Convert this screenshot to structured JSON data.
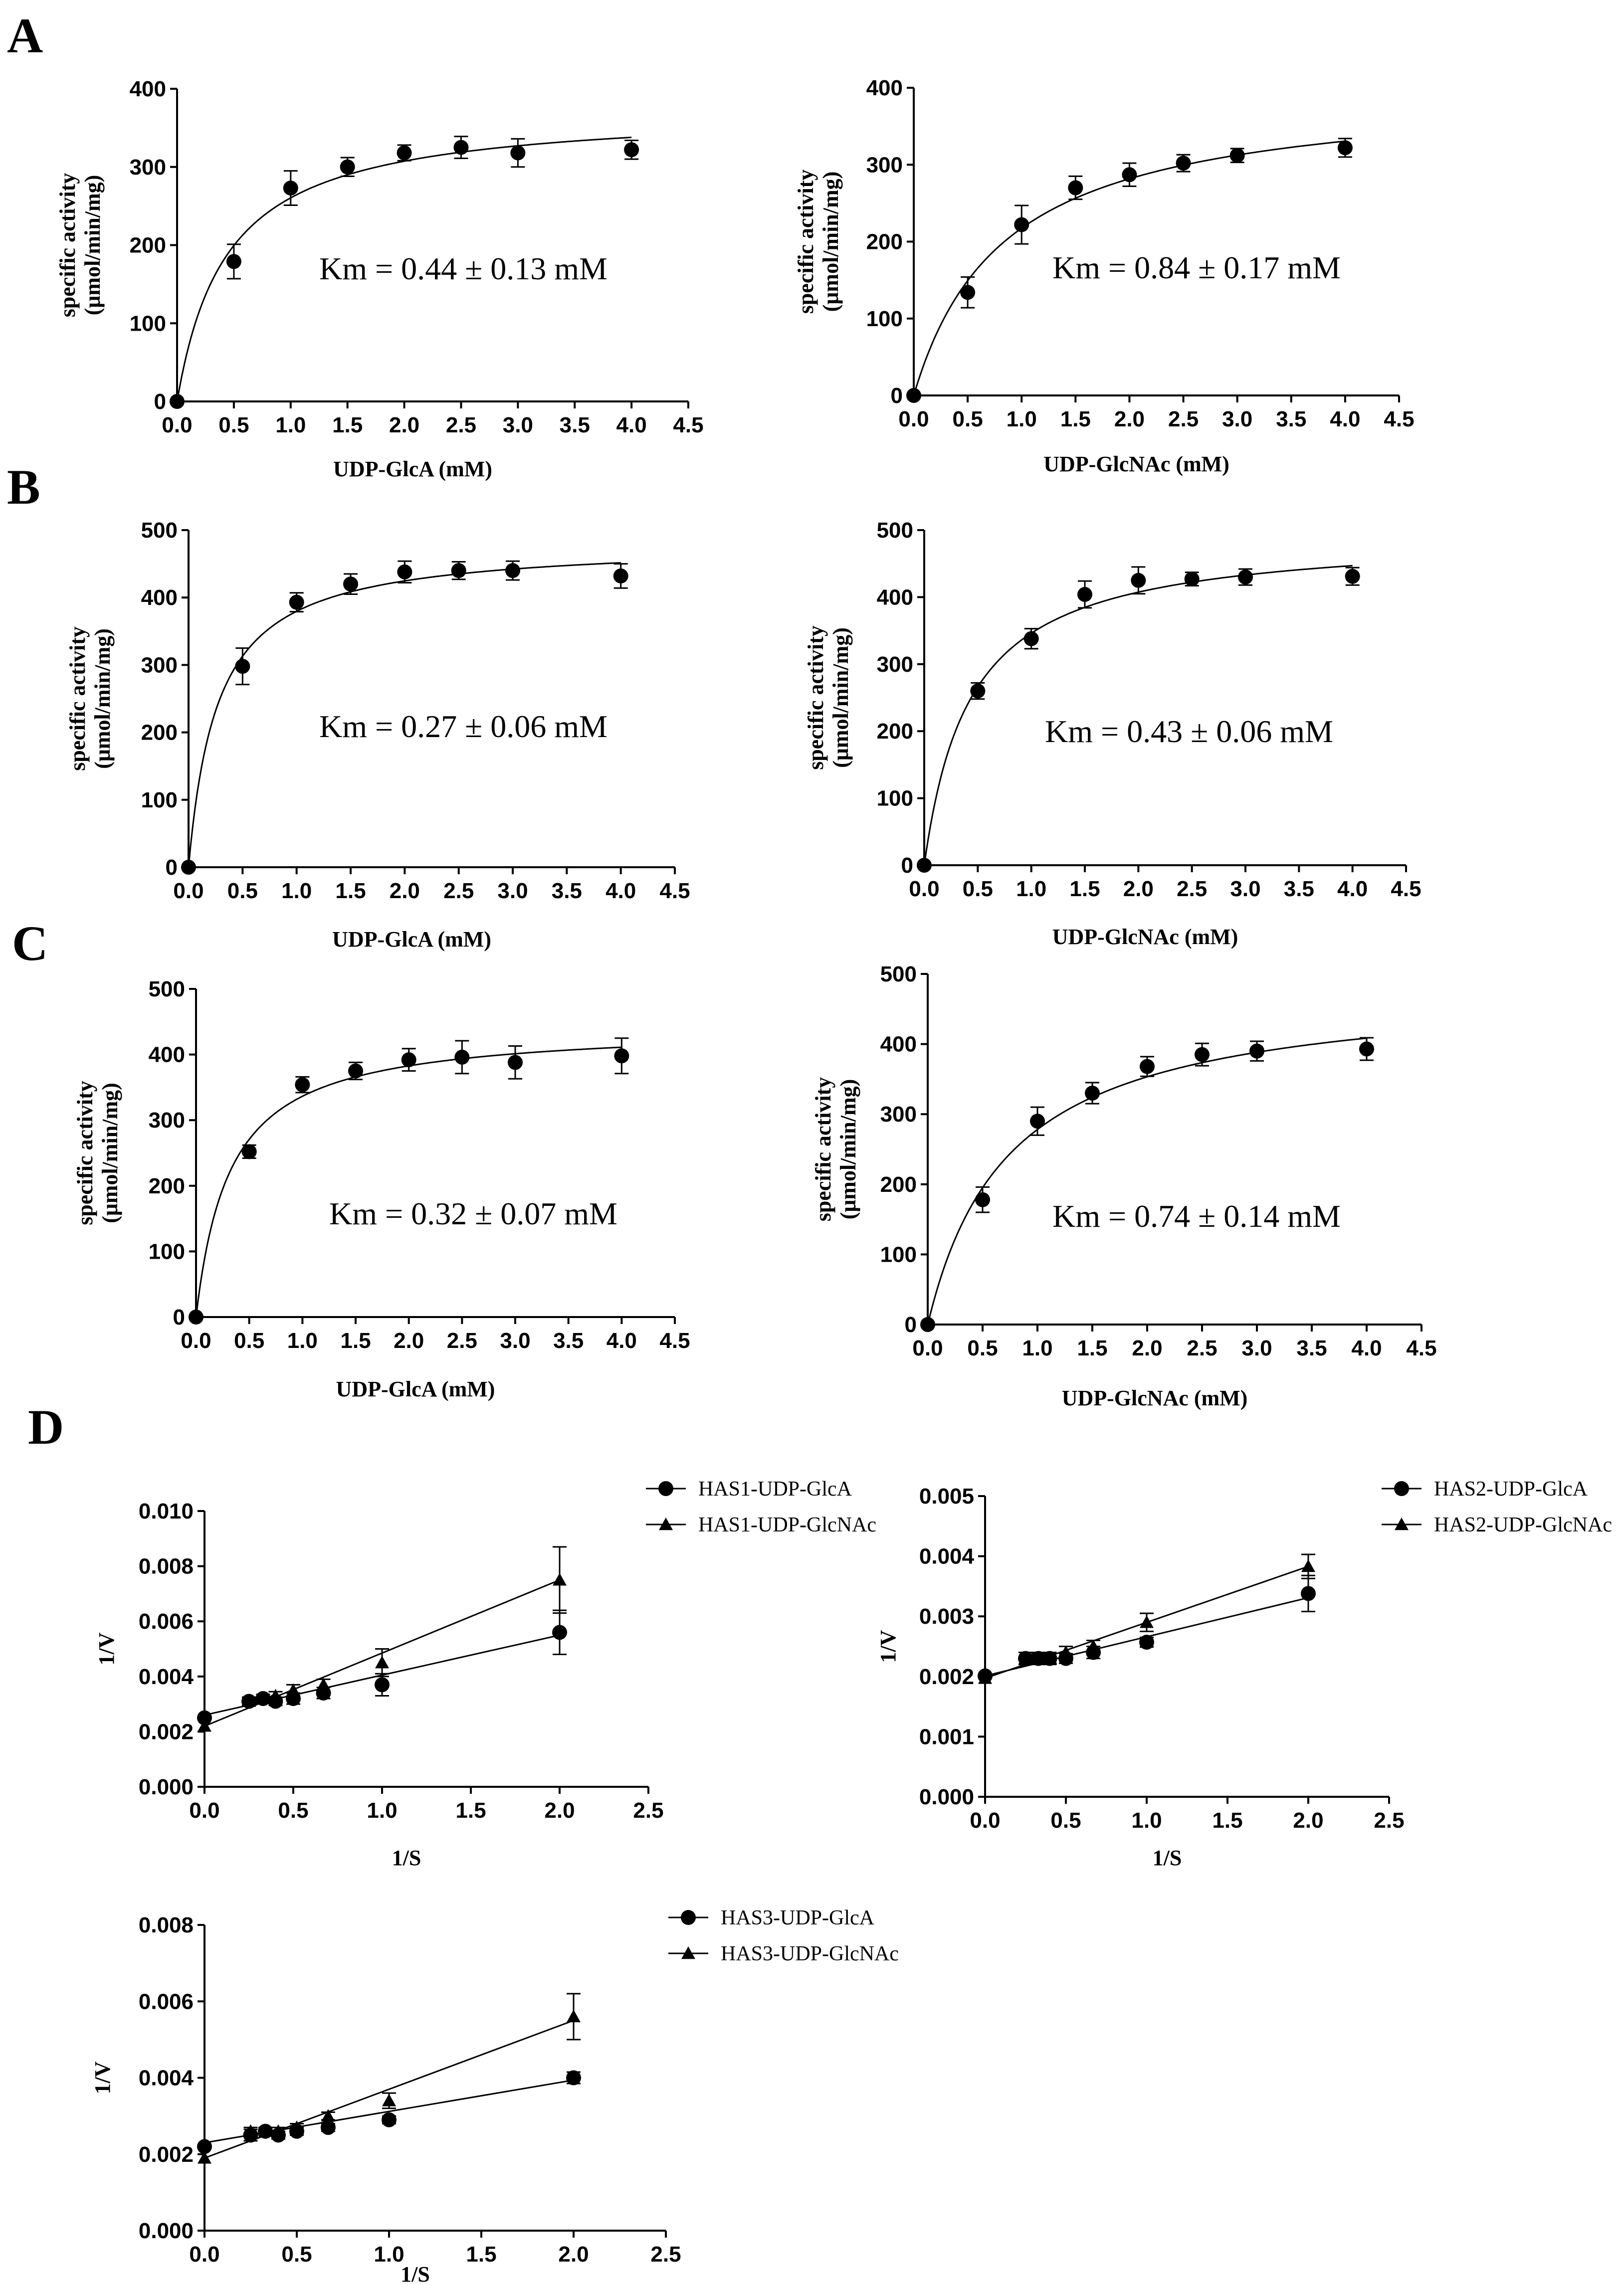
{
  "figure": {
    "panels": [
      {
        "letter": "A"
      },
      {
        "letter": "B"
      },
      {
        "letter": "C"
      },
      {
        "letter": "D"
      }
    ]
  },
  "chart_data": [
    {
      "id": "A-left",
      "panel": "A",
      "type": "scatter",
      "fit": "michaelis-menten",
      "xlabel": "UDP-GlcA (mM)",
      "ylabel": [
        "specific activity",
        "(μmol/min/mg)"
      ],
      "annotation": "Km = 0.44 ± 0.13 mM",
      "xlim": [
        0,
        4.5
      ],
      "ylim": [
        0,
        400
      ],
      "xticks": [
        "0.0",
        "0.5",
        "1.0",
        "1.5",
        "2.0",
        "2.5",
        "3.0",
        "3.5",
        "4.0",
        "4.5"
      ],
      "yticks": [
        "0",
        "100",
        "200",
        "300",
        "400"
      ],
      "fit_params": {
        "vmax": 375,
        "km": 0.44
      },
      "points": [
        {
          "x": 0,
          "y": 0,
          "err": 0
        },
        {
          "x": 0.5,
          "y": 179,
          "err": 22
        },
        {
          "x": 1.0,
          "y": 273,
          "err": 22
        },
        {
          "x": 1.5,
          "y": 300,
          "err": 12
        },
        {
          "x": 2.0,
          "y": 318,
          "err": 10
        },
        {
          "x": 2.5,
          "y": 325,
          "err": 14
        },
        {
          "x": 3.0,
          "y": 318,
          "err": 18
        },
        {
          "x": 4.0,
          "y": 322,
          "err": 12
        }
      ]
    },
    {
      "id": "A-right",
      "panel": "A",
      "type": "scatter",
      "fit": "michaelis-menten",
      "xlabel": "UDP-GlcNAc (mM)",
      "ylabel": [
        "specific activity",
        "(μmol/min/mg)"
      ],
      "annotation": "Km = 0.84 ± 0.17 mM",
      "xlim": [
        0,
        4.5
      ],
      "ylim": [
        0,
        400
      ],
      "xticks": [
        "0.0",
        "0.5",
        "1.0",
        "1.5",
        "2.0",
        "2.5",
        "3.0",
        "3.5",
        "4.0",
        "4.5"
      ],
      "yticks": [
        "0",
        "100",
        "200",
        "300",
        "400"
      ],
      "fit_params": {
        "vmax": 400,
        "km": 0.84
      },
      "points": [
        {
          "x": 0,
          "y": 0,
          "err": 0
        },
        {
          "x": 0.5,
          "y": 134,
          "err": 20
        },
        {
          "x": 1.0,
          "y": 222,
          "err": 25
        },
        {
          "x": 1.5,
          "y": 270,
          "err": 15
        },
        {
          "x": 2.0,
          "y": 287,
          "err": 15
        },
        {
          "x": 2.5,
          "y": 302,
          "err": 11
        },
        {
          "x": 3.0,
          "y": 312,
          "err": 9
        },
        {
          "x": 4.0,
          "y": 322,
          "err": 12
        }
      ]
    },
    {
      "id": "B-left",
      "panel": "B",
      "type": "scatter",
      "fit": "michaelis-menten",
      "xlabel": "UDP-GlcA (mM)",
      "ylabel": [
        "specific activity",
        "(μmol/min/mg)"
      ],
      "annotation": "Km = 0.27 ± 0.06 mM",
      "xlim": [
        0,
        4.5
      ],
      "ylim": [
        0,
        500
      ],
      "xticks": [
        "0.0",
        "0.5",
        "1.0",
        "1.5",
        "2.0",
        "2.5",
        "3.0",
        "3.5",
        "4.0",
        "4.5"
      ],
      "yticks": [
        "0",
        "100",
        "200",
        "300",
        "400",
        "500"
      ],
      "fit_params": {
        "vmax": 482,
        "km": 0.27
      },
      "points": [
        {
          "x": 0,
          "y": 0,
          "err": 0
        },
        {
          "x": 0.5,
          "y": 298,
          "err": 27
        },
        {
          "x": 1.0,
          "y": 393,
          "err": 14
        },
        {
          "x": 1.5,
          "y": 420,
          "err": 15
        },
        {
          "x": 2.0,
          "y": 438,
          "err": 16
        },
        {
          "x": 2.5,
          "y": 440,
          "err": 13
        },
        {
          "x": 3.0,
          "y": 440,
          "err": 14
        },
        {
          "x": 4.0,
          "y": 432,
          "err": 18
        }
      ]
    },
    {
      "id": "B-right",
      "panel": "B",
      "type": "scatter",
      "fit": "michaelis-menten",
      "xlabel": "UDP-GlcNAc (mM)",
      "ylabel": [
        "specific activity",
        "(μmol/min/mg)"
      ],
      "annotation": "Km = 0.43 ± 0.06 mM",
      "xlim": [
        0,
        4.5
      ],
      "ylim": [
        0,
        500
      ],
      "xticks": [
        "0.0",
        "0.5",
        "1.0",
        "1.5",
        "2.0",
        "2.5",
        "3.0",
        "3.5",
        "4.0",
        "4.5"
      ],
      "yticks": [
        "0",
        "100",
        "200",
        "300",
        "400",
        "500"
      ],
      "fit_params": {
        "vmax": 495,
        "km": 0.43
      },
      "points": [
        {
          "x": 0,
          "y": 0,
          "err": 0
        },
        {
          "x": 0.5,
          "y": 260,
          "err": 12
        },
        {
          "x": 1.0,
          "y": 338,
          "err": 15
        },
        {
          "x": 1.5,
          "y": 404,
          "err": 20
        },
        {
          "x": 2.0,
          "y": 425,
          "err": 20
        },
        {
          "x": 2.5,
          "y": 427,
          "err": 10
        },
        {
          "x": 3.0,
          "y": 430,
          "err": 12
        },
        {
          "x": 4.0,
          "y": 431,
          "err": 13
        }
      ]
    },
    {
      "id": "C-left",
      "panel": "C",
      "type": "scatter",
      "fit": "michaelis-menten",
      "xlabel": "UDP-GlcA (mM)",
      "ylabel": [
        "specific activity",
        "(μmol/min/mg)"
      ],
      "annotation": "Km = 0.32 ± 0.07 mM",
      "xlim": [
        0,
        4.5
      ],
      "ylim": [
        0,
        500
      ],
      "xticks": [
        "0.0",
        "0.5",
        "1.0",
        "1.5",
        "2.0",
        "2.5",
        "3.0",
        "3.5",
        "4.0",
        "4.5"
      ],
      "yticks": [
        "0",
        "100",
        "200",
        "300",
        "400",
        "500"
      ],
      "fit_params": {
        "vmax": 444,
        "km": 0.32
      },
      "points": [
        {
          "x": 0,
          "y": 0,
          "err": 0
        },
        {
          "x": 0.5,
          "y": 252,
          "err": 10
        },
        {
          "x": 1.0,
          "y": 354,
          "err": 12
        },
        {
          "x": 1.5,
          "y": 375,
          "err": 13
        },
        {
          "x": 2.0,
          "y": 392,
          "err": 17
        },
        {
          "x": 2.5,
          "y": 396,
          "err": 25
        },
        {
          "x": 3.0,
          "y": 388,
          "err": 25
        },
        {
          "x": 4.0,
          "y": 398,
          "err": 27
        }
      ]
    },
    {
      "id": "C-right",
      "panel": "C",
      "type": "scatter",
      "fit": "michaelis-menten",
      "xlabel": "UDP-GlcNAc (mM)",
      "ylabel": [
        "specific activity",
        "(μmol/min/mg)"
      ],
      "annotation": "Km = 0.74 ± 0.14 mM",
      "xlim": [
        0,
        4.5
      ],
      "ylim": [
        0,
        500
      ],
      "xticks": [
        "0.0",
        "0.5",
        "1.0",
        "1.5",
        "2.0",
        "2.5",
        "3.0",
        "3.5",
        "4.0",
        "4.5"
      ],
      "yticks": [
        "0",
        "100",
        "200",
        "300",
        "400",
        "500"
      ],
      "fit_params": {
        "vmax": 484,
        "km": 0.74
      },
      "points": [
        {
          "x": 0,
          "y": 0,
          "err": 0
        },
        {
          "x": 0.5,
          "y": 178,
          "err": 18
        },
        {
          "x": 1.0,
          "y": 290,
          "err": 20
        },
        {
          "x": 1.5,
          "y": 330,
          "err": 15
        },
        {
          "x": 2.0,
          "y": 368,
          "err": 14
        },
        {
          "x": 2.5,
          "y": 385,
          "err": 16
        },
        {
          "x": 3.0,
          "y": 390,
          "err": 14
        },
        {
          "x": 4.0,
          "y": 393,
          "err": 16
        }
      ]
    },
    {
      "id": "D-has1",
      "panel": "D",
      "type": "scatter",
      "fit": "linear",
      "xlabel": "1/S",
      "ylabel": [
        "1/V"
      ],
      "xlim": [
        0,
        2.5
      ],
      "ylim": [
        0,
        0.01
      ],
      "xticks": [
        "0.0",
        "0.5",
        "1.0",
        "1.5",
        "2.0",
        "2.5"
      ],
      "yticks": [
        "0.000",
        "0.002",
        "0.004",
        "0.006",
        "0.008",
        "0.010"
      ],
      "series": [
        {
          "name": "HAS1-UDP-GlcA",
          "marker": "circle",
          "line": {
            "intercept": 0.0026,
            "slope": 0.00145
          },
          "points": [
            {
              "x": 0,
              "y": 0.0025,
              "err": 0
            },
            {
              "x": 0.25,
              "y": 0.0031,
              "err": 0.00015
            },
            {
              "x": 0.33,
              "y": 0.0032,
              "err": 0.00015
            },
            {
              "x": 0.4,
              "y": 0.0031,
              "err": 0.00015
            },
            {
              "x": 0.5,
              "y": 0.0032,
              "err": 0.0002
            },
            {
              "x": 0.67,
              "y": 0.0034,
              "err": 0.0002
            },
            {
              "x": 1.0,
              "y": 0.0037,
              "err": 0.0004
            },
            {
              "x": 2.0,
              "y": 0.0056,
              "err": 0.0008
            }
          ]
        },
        {
          "name": "HAS1-UDP-GlcNAc",
          "marker": "triangle",
          "line": {
            "intercept": 0.0022,
            "slope": 0.00265
          },
          "points": [
            {
              "x": 0,
              "y": 0.0022,
              "err": 0
            },
            {
              "x": 0.25,
              "y": 0.0031,
              "err": 0.00015
            },
            {
              "x": 0.33,
              "y": 0.0032,
              "err": 0.00015
            },
            {
              "x": 0.4,
              "y": 0.0033,
              "err": 0.00015
            },
            {
              "x": 0.5,
              "y": 0.0035,
              "err": 0.0002
            },
            {
              "x": 0.67,
              "y": 0.0037,
              "err": 0.0002
            },
            {
              "x": 1.0,
              "y": 0.0045,
              "err": 0.0005
            },
            {
              "x": 2.0,
              "y": 0.0075,
              "err": 0.0012
            }
          ]
        }
      ]
    },
    {
      "id": "D-has2",
      "panel": "D",
      "type": "scatter",
      "fit": "linear",
      "xlabel": "1/S",
      "ylabel": [
        "1/V"
      ],
      "xlim": [
        0,
        2.5
      ],
      "ylim": [
        0,
        0.005
      ],
      "xticks": [
        "0.0",
        "0.5",
        "1.0",
        "1.5",
        "2.0",
        "2.5"
      ],
      "yticks": [
        "0.000",
        "0.001",
        "0.002",
        "0.003",
        "0.004",
        "0.005"
      ],
      "series": [
        {
          "name": "HAS2-UDP-GlcA",
          "marker": "circle",
          "line": {
            "intercept": 0.00201,
            "slope": 0.00065
          },
          "points": [
            {
              "x": 0,
              "y": 0.00201,
              "err": 0
            },
            {
              "x": 0.25,
              "y": 0.0023,
              "err": 0.0001
            },
            {
              "x": 0.33,
              "y": 0.0023,
              "err": 8e-05
            },
            {
              "x": 0.4,
              "y": 0.0023,
              "err": 8e-05
            },
            {
              "x": 0.5,
              "y": 0.0023,
              "err": 8e-05
            },
            {
              "x": 0.67,
              "y": 0.0024,
              "err": 0.0001
            },
            {
              "x": 1.0,
              "y": 0.00257,
              "err": 8e-05
            },
            {
              "x": 2.0,
              "y": 0.00338,
              "err": 0.0003
            }
          ]
        },
        {
          "name": "HAS2-UDP-GlcNAc",
          "marker": "triangle",
          "line": {
            "intercept": 0.00197,
            "slope": 0.00093
          },
          "points": [
            {
              "x": 0,
              "y": 0.00197,
              "err": 0
            },
            {
              "x": 0.25,
              "y": 0.0023,
              "err": 0.0001
            },
            {
              "x": 0.33,
              "y": 0.0023,
              "err": 0.0001
            },
            {
              "x": 0.4,
              "y": 0.0023,
              "err": 0.0001
            },
            {
              "x": 0.5,
              "y": 0.0024,
              "err": 0.0001
            },
            {
              "x": 0.67,
              "y": 0.0025,
              "err": 0.0001
            },
            {
              "x": 1.0,
              "y": 0.0029,
              "err": 0.00015
            },
            {
              "x": 2.0,
              "y": 0.00383,
              "err": 0.0002
            }
          ]
        }
      ]
    },
    {
      "id": "D-has3",
      "panel": "D",
      "type": "scatter",
      "fit": "linear",
      "xlabel": "1/S",
      "ylabel": [
        "1/V"
      ],
      "xlim": [
        0,
        2.5
      ],
      "ylim": [
        0,
        0.008
      ],
      "xticks": [
        "0.0",
        "0.5",
        "1.0",
        "1.5",
        "2.0",
        "2.5"
      ],
      "yticks": [
        "0.000",
        "0.002",
        "0.004",
        "0.006",
        "0.008"
      ],
      "series": [
        {
          "name": "HAS3-UDP-GlcA",
          "marker": "circle",
          "line": {
            "intercept": 0.0023,
            "slope": 0.00082
          },
          "points": [
            {
              "x": 0,
              "y": 0.0022,
              "err": 0
            },
            {
              "x": 0.25,
              "y": 0.0025,
              "err": 0.00015
            },
            {
              "x": 0.33,
              "y": 0.0026,
              "err": 0.0001
            },
            {
              "x": 0.4,
              "y": 0.0025,
              "err": 0.0001
            },
            {
              "x": 0.5,
              "y": 0.0026,
              "err": 0.0001
            },
            {
              "x": 0.67,
              "y": 0.0027,
              "err": 0.0001
            },
            {
              "x": 1.0,
              "y": 0.0029,
              "err": 0.0001
            },
            {
              "x": 2.0,
              "y": 0.004,
              "err": 0.00015
            }
          ]
        },
        {
          "name": "HAS3-UDP-GlcNAc",
          "marker": "triangle",
          "line": {
            "intercept": 0.0019,
            "slope": 0.0018
          },
          "points": [
            {
              "x": 0,
              "y": 0.0019,
              "err": 0
            },
            {
              "x": 0.25,
              "y": 0.0026,
              "err": 0.0001
            },
            {
              "x": 0.33,
              "y": 0.0026,
              "err": 0.0001
            },
            {
              "x": 0.4,
              "y": 0.0026,
              "err": 0.0001
            },
            {
              "x": 0.5,
              "y": 0.0027,
              "err": 0.0001
            },
            {
              "x": 0.67,
              "y": 0.003,
              "err": 0.0001
            },
            {
              "x": 1.0,
              "y": 0.0034,
              "err": 0.0002
            },
            {
              "x": 2.0,
              "y": 0.0056,
              "err": 0.0006
            }
          ]
        }
      ]
    }
  ]
}
